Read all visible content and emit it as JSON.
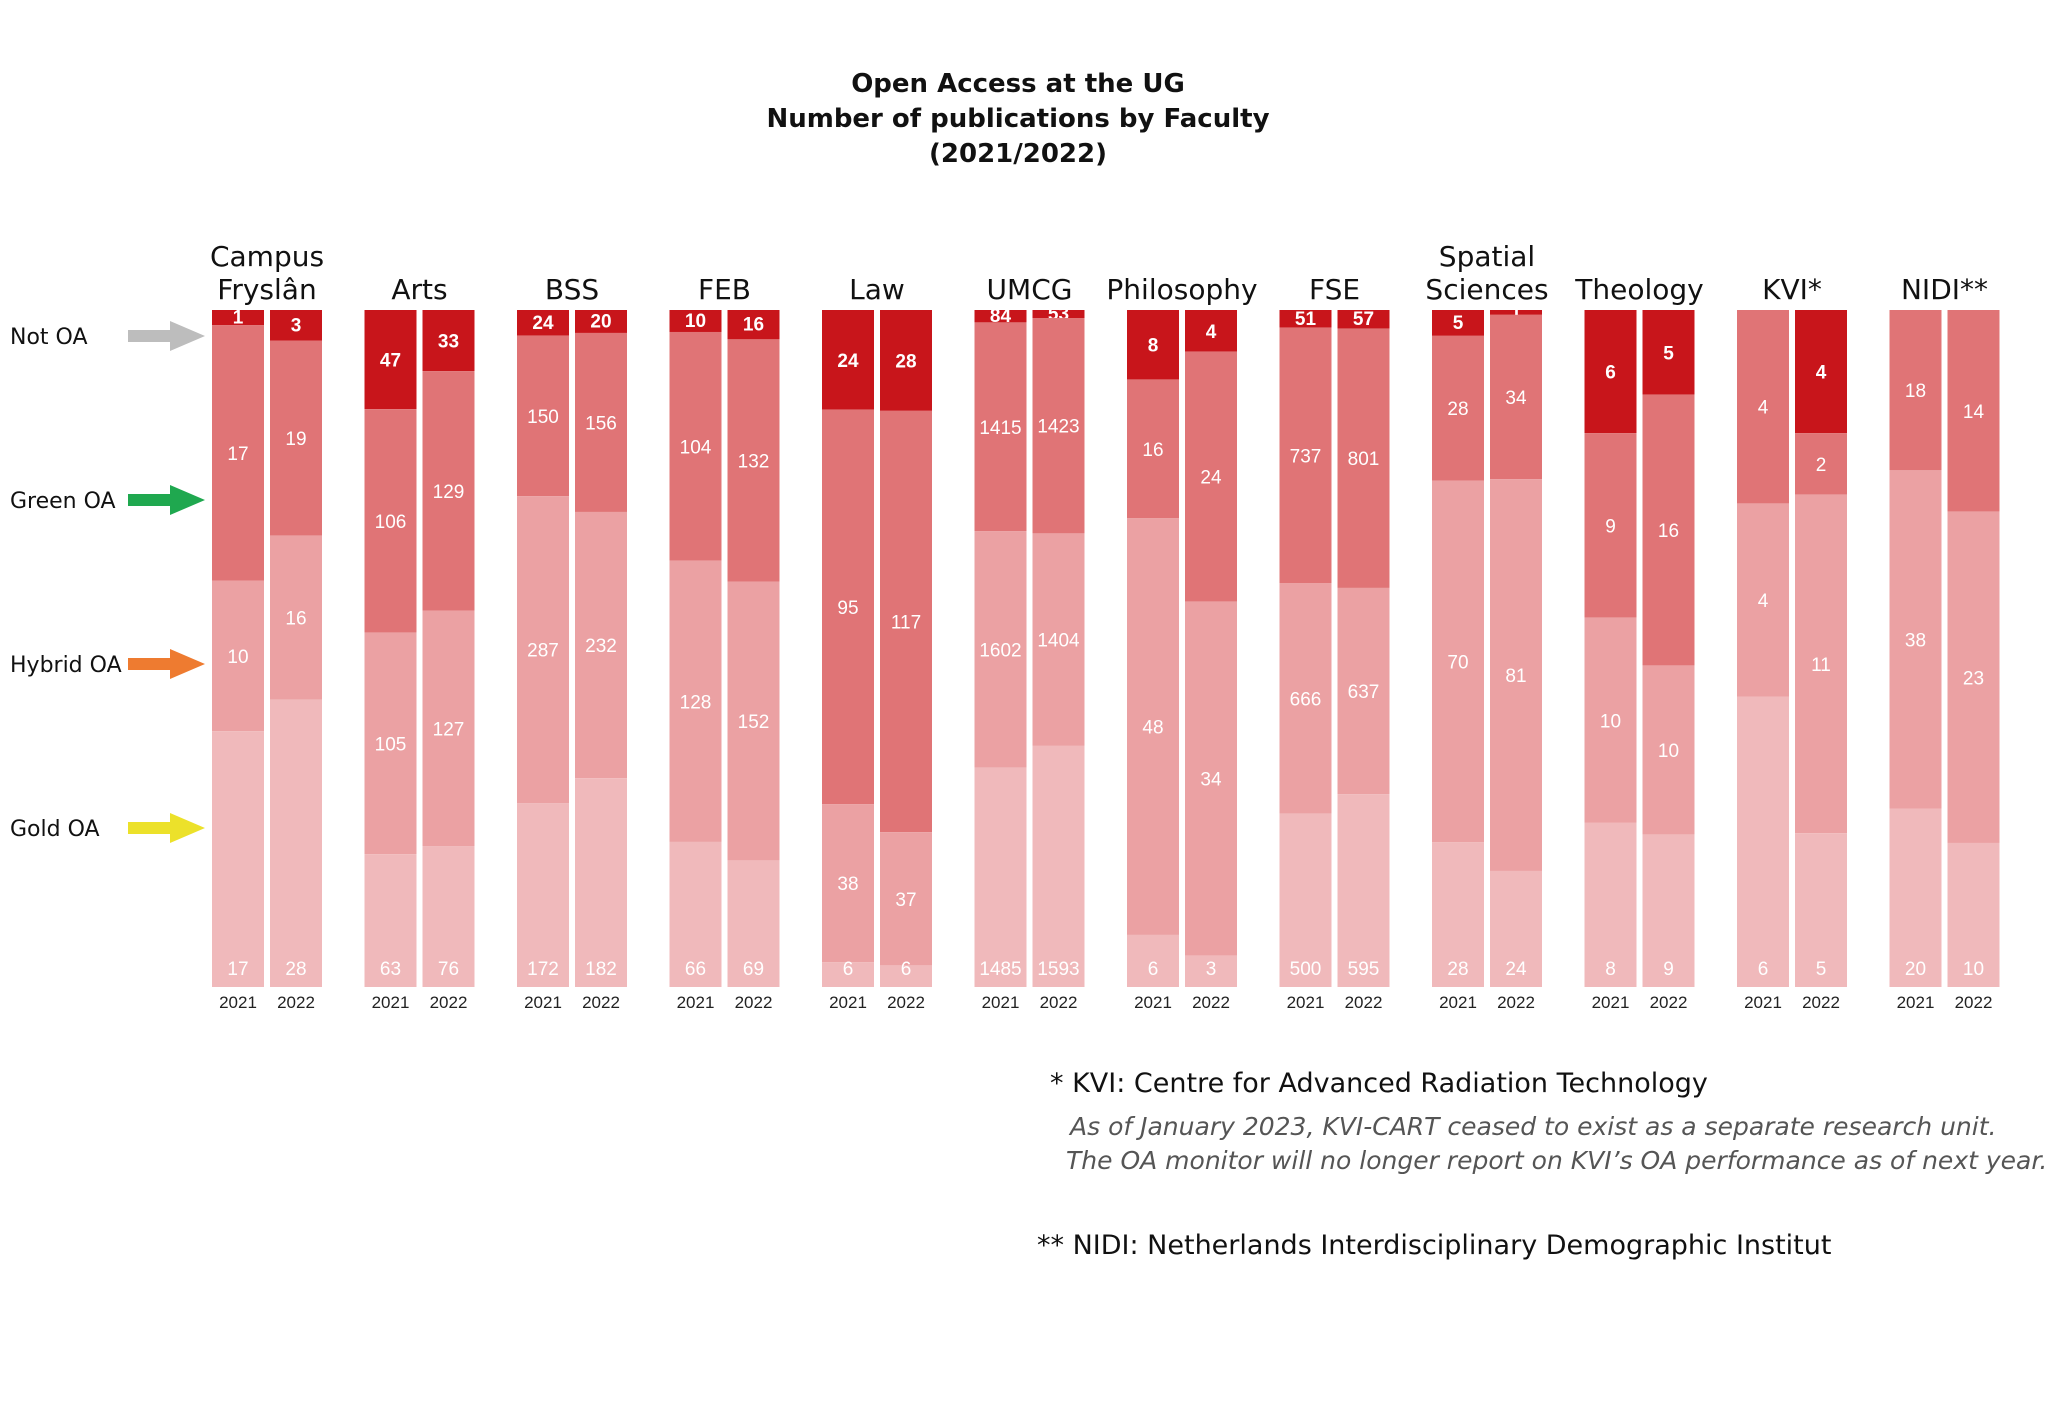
{
  "chart_data": {
    "type": "bar",
    "stacked": true,
    "normalized": true,
    "title": [
      "Open Access at the UG",
      "Number of publications by Faculty",
      "(2021/2022)"
    ],
    "legend": [
      {
        "name": "Not OA",
        "arrow_color": "#bdbdbd",
        "fill": "#c8151b"
      },
      {
        "name": "Green OA",
        "arrow_color": "#1fa84f",
        "fill": "#e07476"
      },
      {
        "name": "Hybrid OA",
        "arrow_color": "#ee7b30",
        "fill": "#eba1a3"
      },
      {
        "name": "Gold OA",
        "arrow_color": "#ece12a",
        "fill": "#f0b9bb"
      }
    ],
    "faculties": [
      {
        "name": [
          "Campus",
          "Fryslân"
        ],
        "years": [
          "2021",
          "2022"
        ],
        "values": {
          "not_oa": [
            1,
            3
          ],
          "green": [
            17,
            19
          ],
          "hybrid": [
            10,
            16
          ],
          "gold": [
            17,
            28
          ]
        }
      },
      {
        "name": [
          "Arts"
        ],
        "years": [
          "2021",
          "2022"
        ],
        "values": {
          "not_oa": [
            47,
            33
          ],
          "green": [
            106,
            129
          ],
          "hybrid": [
            105,
            127
          ],
          "gold": [
            63,
            76
          ]
        }
      },
      {
        "name": [
          "BSS"
        ],
        "years": [
          "2021",
          "2022"
        ],
        "values": {
          "not_oa": [
            24,
            20
          ],
          "green": [
            150,
            156
          ],
          "hybrid": [
            287,
            232
          ],
          "gold": [
            172,
            182
          ]
        }
      },
      {
        "name": [
          "FEB"
        ],
        "years": [
          "2021",
          "2022"
        ],
        "values": {
          "not_oa": [
            10,
            16
          ],
          "green": [
            104,
            132
          ],
          "hybrid": [
            128,
            152
          ],
          "gold": [
            66,
            69
          ]
        }
      },
      {
        "name": [
          "Law"
        ],
        "years": [
          "2021",
          "2022"
        ],
        "values": {
          "not_oa": [
            24,
            28
          ],
          "green": [
            95,
            117
          ],
          "hybrid": [
            38,
            37
          ],
          "gold": [
            6,
            6
          ]
        }
      },
      {
        "name": [
          "UMCG"
        ],
        "years": [
          "2021",
          "2022"
        ],
        "values": {
          "not_oa": [
            84,
            53
          ],
          "green": [
            1415,
            1423
          ],
          "hybrid": [
            1602,
            1404
          ],
          "gold": [
            1485,
            1593
          ]
        }
      },
      {
        "name": [
          "Philosophy"
        ],
        "years": [
          "2021",
          "2022"
        ],
        "values": {
          "not_oa": [
            8,
            4
          ],
          "green": [
            16,
            24
          ],
          "hybrid": [
            48,
            34
          ],
          "gold": [
            6,
            3
          ]
        }
      },
      {
        "name": [
          "FSE"
        ],
        "years": [
          "2021",
          "2022"
        ],
        "values": {
          "not_oa": [
            51,
            57
          ],
          "green": [
            737,
            801
          ],
          "hybrid": [
            666,
            637
          ],
          "gold": [
            500,
            595
          ]
        }
      },
      {
        "name": [
          "Spatial",
          "Sciences"
        ],
        "years": [
          "2021",
          "2022"
        ],
        "values": {
          "not_oa": [
            5,
            1
          ],
          "green": [
            28,
            34
          ],
          "hybrid": [
            70,
            81
          ],
          "gold": [
            28,
            24
          ]
        }
      },
      {
        "name": [
          "Theology"
        ],
        "years": [
          "2021",
          "2022"
        ],
        "values": {
          "not_oa": [
            6,
            5
          ],
          "green": [
            9,
            16
          ],
          "hybrid": [
            10,
            10
          ],
          "gold": [
            8,
            9
          ]
        }
      },
      {
        "name": [
          "KVI*"
        ],
        "years": [
          "2021",
          "2022"
        ],
        "values": {
          "not_oa": [
            null,
            4
          ],
          "green": [
            4,
            2
          ],
          "hybrid": [
            4,
            11
          ],
          "gold": [
            6,
            5
          ]
        }
      },
      {
        "name": [
          "NIDI**"
        ],
        "years": [
          "2021",
          "2022"
        ],
        "values": {
          "not_oa": [
            null,
            null
          ],
          "green": [
            18,
            14
          ],
          "hybrid": [
            38,
            23
          ],
          "gold": [
            20,
            10
          ]
        }
      }
    ]
  },
  "notes": {
    "kvi": "* KVI: Centre for Advanced Radiation Technology",
    "kvi_detail_1": "As of January 2023, KVI-CART ceased to exist as a separate research unit.",
    "kvi_detail_2": "The OA monitor will no longer report on KVI’s OA performance as of next year.",
    "nidi": "** NIDI: Netherlands Interdisciplinary Demographic Institut"
  }
}
